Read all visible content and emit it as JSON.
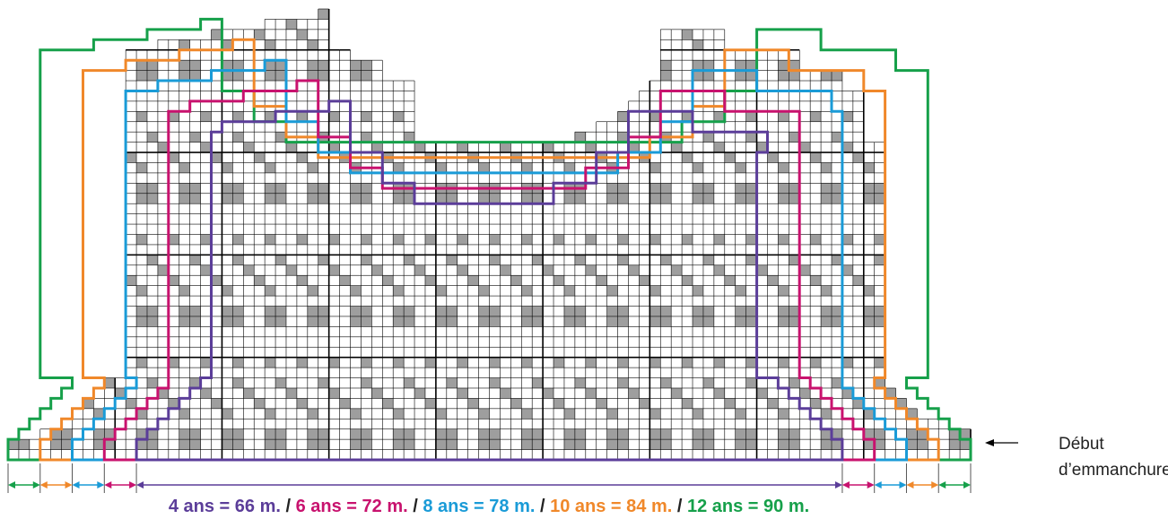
{
  "diagram": {
    "grid": {
      "cols": 90,
      "rows": 44,
      "shaded_color": "#9e9e9e",
      "line_color": "#000000"
    },
    "annotation": {
      "line1": "Début",
      "line2": "d’emmanchure",
      "arrow_direction": "left"
    },
    "sizes": [
      {
        "label": "4 ans = 66 m.",
        "stitches": 66,
        "color": "#5b3d99"
      },
      {
        "label": "6 ans = 72 m.",
        "stitches": 72,
        "color": "#c8126e"
      },
      {
        "label": "8 ans = 78 m.",
        "stitches": 78,
        "color": "#1a9bd7"
      },
      {
        "label": "10 ans = 84 m.",
        "stitches": 84,
        "color": "#f0882a"
      },
      {
        "label": "12 ans = 90 m.",
        "stitches": 90,
        "color": "#16a04a"
      }
    ],
    "separator": " / "
  }
}
